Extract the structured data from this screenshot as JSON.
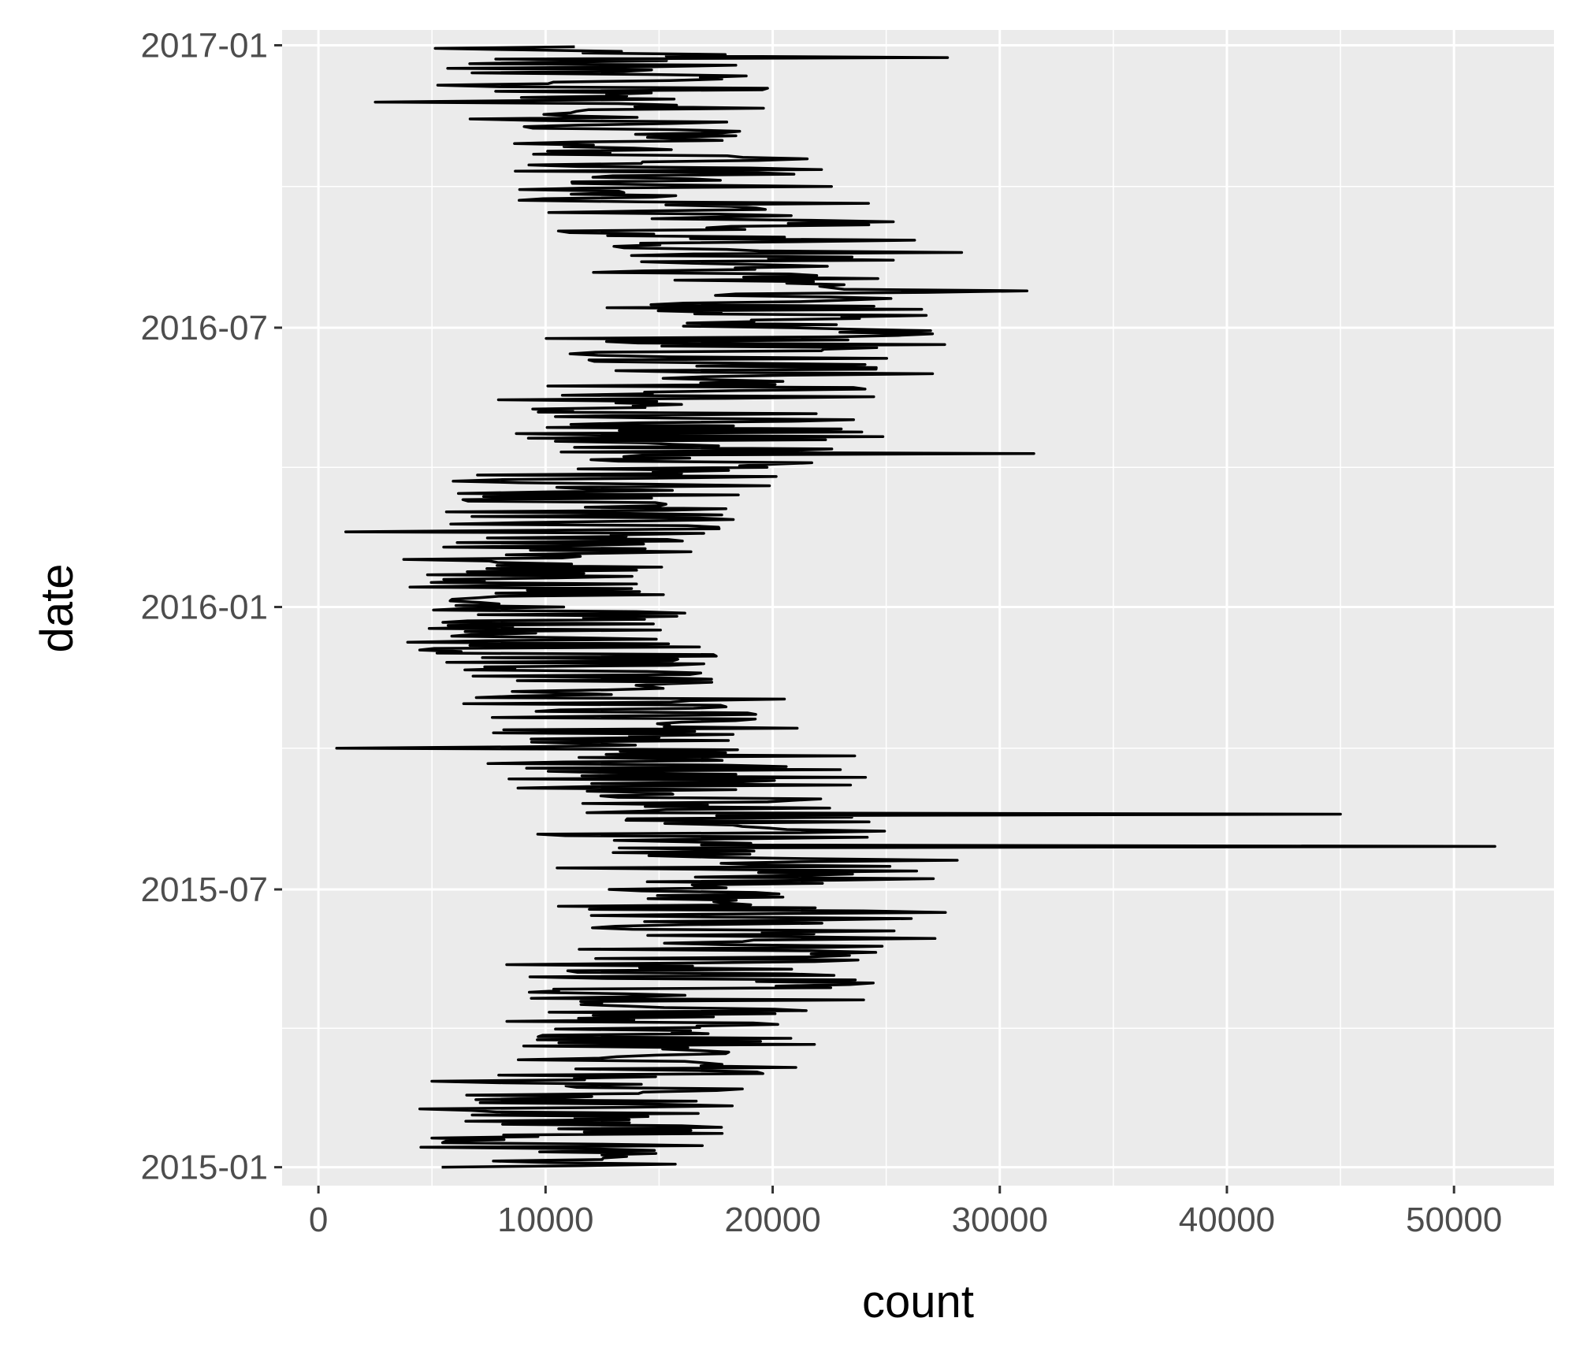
{
  "chart_data": {
    "type": "line",
    "orientation": "horizontal",
    "title": "",
    "xlabel": "count",
    "ylabel": "date",
    "xlim": [
      -1600,
      54400
    ],
    "ylim": [
      "2014-12-20",
      "2017-01-11"
    ],
    "x_ticks": [
      0,
      10000,
      20000,
      30000,
      40000,
      50000
    ],
    "y_ticks": [
      "2015-01",
      "2015-07",
      "2016-01",
      "2016-07",
      "2017-01"
    ],
    "grid": true,
    "legend": "none",
    "colors": {
      "panel": "#ebebeb",
      "grid": "#ffffff",
      "line": "#000000",
      "tick_text": "#4d4d4d"
    },
    "series": [
      {
        "values": [
          [
            "2015-01-01",
            10000
          ],
          [
            "2015-01-08",
            10500
          ],
          [
            "2015-01-15",
            11000
          ],
          [
            "2015-01-22",
            11300
          ],
          [
            "2015-02-01",
            11500
          ],
          [
            "2015-02-08",
            11800
          ],
          [
            "2015-02-15",
            12000
          ],
          [
            "2015-02-22",
            12200
          ],
          [
            "2015-03-01",
            12500
          ],
          [
            "2015-03-08",
            13000
          ],
          [
            "2015-03-15",
            13500
          ],
          [
            "2015-03-22",
            14500
          ],
          [
            "2015-04-01",
            15000
          ],
          [
            "2015-04-08",
            15500
          ],
          [
            "2015-04-15",
            16000
          ],
          [
            "2015-04-22",
            16500
          ],
          [
            "2015-05-01",
            17000
          ],
          [
            "2015-05-08",
            17200
          ],
          [
            "2015-05-15",
            17500
          ],
          [
            "2015-05-22",
            17800
          ],
          [
            "2015-06-01",
            18000
          ],
          [
            "2015-06-08",
            18300
          ],
          [
            "2015-06-15",
            18500
          ],
          [
            "2015-06-22",
            18800
          ],
          [
            "2015-07-01",
            19000
          ],
          [
            "2015-07-08",
            19200
          ],
          [
            "2015-07-15",
            19000
          ],
          [
            "2015-07-22",
            18800
          ],
          [
            "2015-08-01",
            18500
          ],
          [
            "2015-08-08",
            18200
          ],
          [
            "2015-08-15",
            18000
          ],
          [
            "2015-08-22",
            17500
          ],
          [
            "2015-09-01",
            17000
          ],
          [
            "2015-09-08",
            16500
          ],
          [
            "2015-09-15",
            16000
          ],
          [
            "2015-09-22",
            15500
          ],
          [
            "2015-10-01",
            15000
          ],
          [
            "2015-10-08",
            14500
          ],
          [
            "2015-10-15",
            14000
          ],
          [
            "2015-10-22",
            13500
          ],
          [
            "2015-11-01",
            13000
          ],
          [
            "2015-11-08",
            12500
          ],
          [
            "2015-11-15",
            12000
          ],
          [
            "2015-11-22",
            11500
          ],
          [
            "2015-12-01",
            11000
          ],
          [
            "2015-12-08",
            10500
          ],
          [
            "2015-12-15",
            10000
          ],
          [
            "2015-12-22",
            9800
          ],
          [
            "2016-01-01",
            9500
          ],
          [
            "2016-01-08",
            9700
          ],
          [
            "2016-01-15",
            10000
          ],
          [
            "2016-01-22",
            10200
          ],
          [
            "2016-02-01",
            10500
          ],
          [
            "2016-02-08",
            10700
          ],
          [
            "2016-02-15",
            11000
          ],
          [
            "2016-02-22",
            11200
          ],
          [
            "2016-03-01",
            11500
          ],
          [
            "2016-03-08",
            11800
          ],
          [
            "2016-03-15",
            12000
          ],
          [
            "2016-03-22",
            12500
          ],
          [
            "2016-04-01",
            13500
          ],
          [
            "2016-04-08",
            14500
          ],
          [
            "2016-04-15",
            15500
          ],
          [
            "2016-04-22",
            16500
          ],
          [
            "2016-05-01",
            17000
          ],
          [
            "2016-05-08",
            17300
          ],
          [
            "2016-05-15",
            17500
          ],
          [
            "2016-05-22",
            17800
          ],
          [
            "2016-06-01",
            18000
          ],
          [
            "2016-06-08",
            18300
          ],
          [
            "2016-06-15",
            18500
          ],
          [
            "2016-06-22",
            18800
          ],
          [
            "2016-07-01",
            19000
          ],
          [
            "2016-07-08",
            19300
          ],
          [
            "2016-07-15",
            19500
          ],
          [
            "2016-07-22",
            19600
          ],
          [
            "2016-08-01",
            19500
          ],
          [
            "2016-08-08",
            19300
          ],
          [
            "2016-08-15",
            19000
          ],
          [
            "2016-08-22",
            18700
          ],
          [
            "2016-09-01",
            18500
          ],
          [
            "2016-09-08",
            18200
          ],
          [
            "2016-09-15",
            18000
          ],
          [
            "2016-09-22",
            17500
          ],
          [
            "2016-10-01",
            17000
          ],
          [
            "2016-10-08",
            16500
          ],
          [
            "2016-10-15",
            16000
          ],
          [
            "2016-10-22",
            15500
          ],
          [
            "2016-11-01",
            15000
          ],
          [
            "2016-11-08",
            14500
          ],
          [
            "2016-11-15",
            14000
          ],
          [
            "2016-11-22",
            13500
          ],
          [
            "2016-12-01",
            13000
          ],
          [
            "2016-12-08",
            12500
          ],
          [
            "2016-12-15",
            12000
          ],
          [
            "2016-12-22",
            11500
          ],
          [
            "2016-12-31",
            10500
          ]
        ],
        "spread_count": [
          [
            "2015-01",
            6000
          ],
          [
            "2015-03",
            7000
          ],
          [
            "2015-05",
            8000
          ],
          [
            "2015-07",
            8500
          ],
          [
            "2015-09",
            8000
          ],
          [
            "2015-11",
            7000
          ],
          [
            "2016-01",
            6000
          ],
          [
            "2016-03",
            6500
          ],
          [
            "2016-05",
            8000
          ],
          [
            "2016-07",
            8500
          ],
          [
            "2016-09",
            8000
          ],
          [
            "2016-11",
            7000
          ],
          [
            "2016-12",
            6500
          ]
        ],
        "outliers": [
          [
            "2015-07-29",
            51800
          ],
          [
            "2015-08-19",
            45000
          ],
          [
            "2015-10-01",
            800
          ],
          [
            "2016-02-19",
            1200
          ],
          [
            "2016-04-10",
            31500
          ],
          [
            "2016-07-25",
            31200
          ],
          [
            "2016-11-25",
            2500
          ],
          [
            "2016-12-24",
            27700
          ]
        ]
      }
    ]
  }
}
